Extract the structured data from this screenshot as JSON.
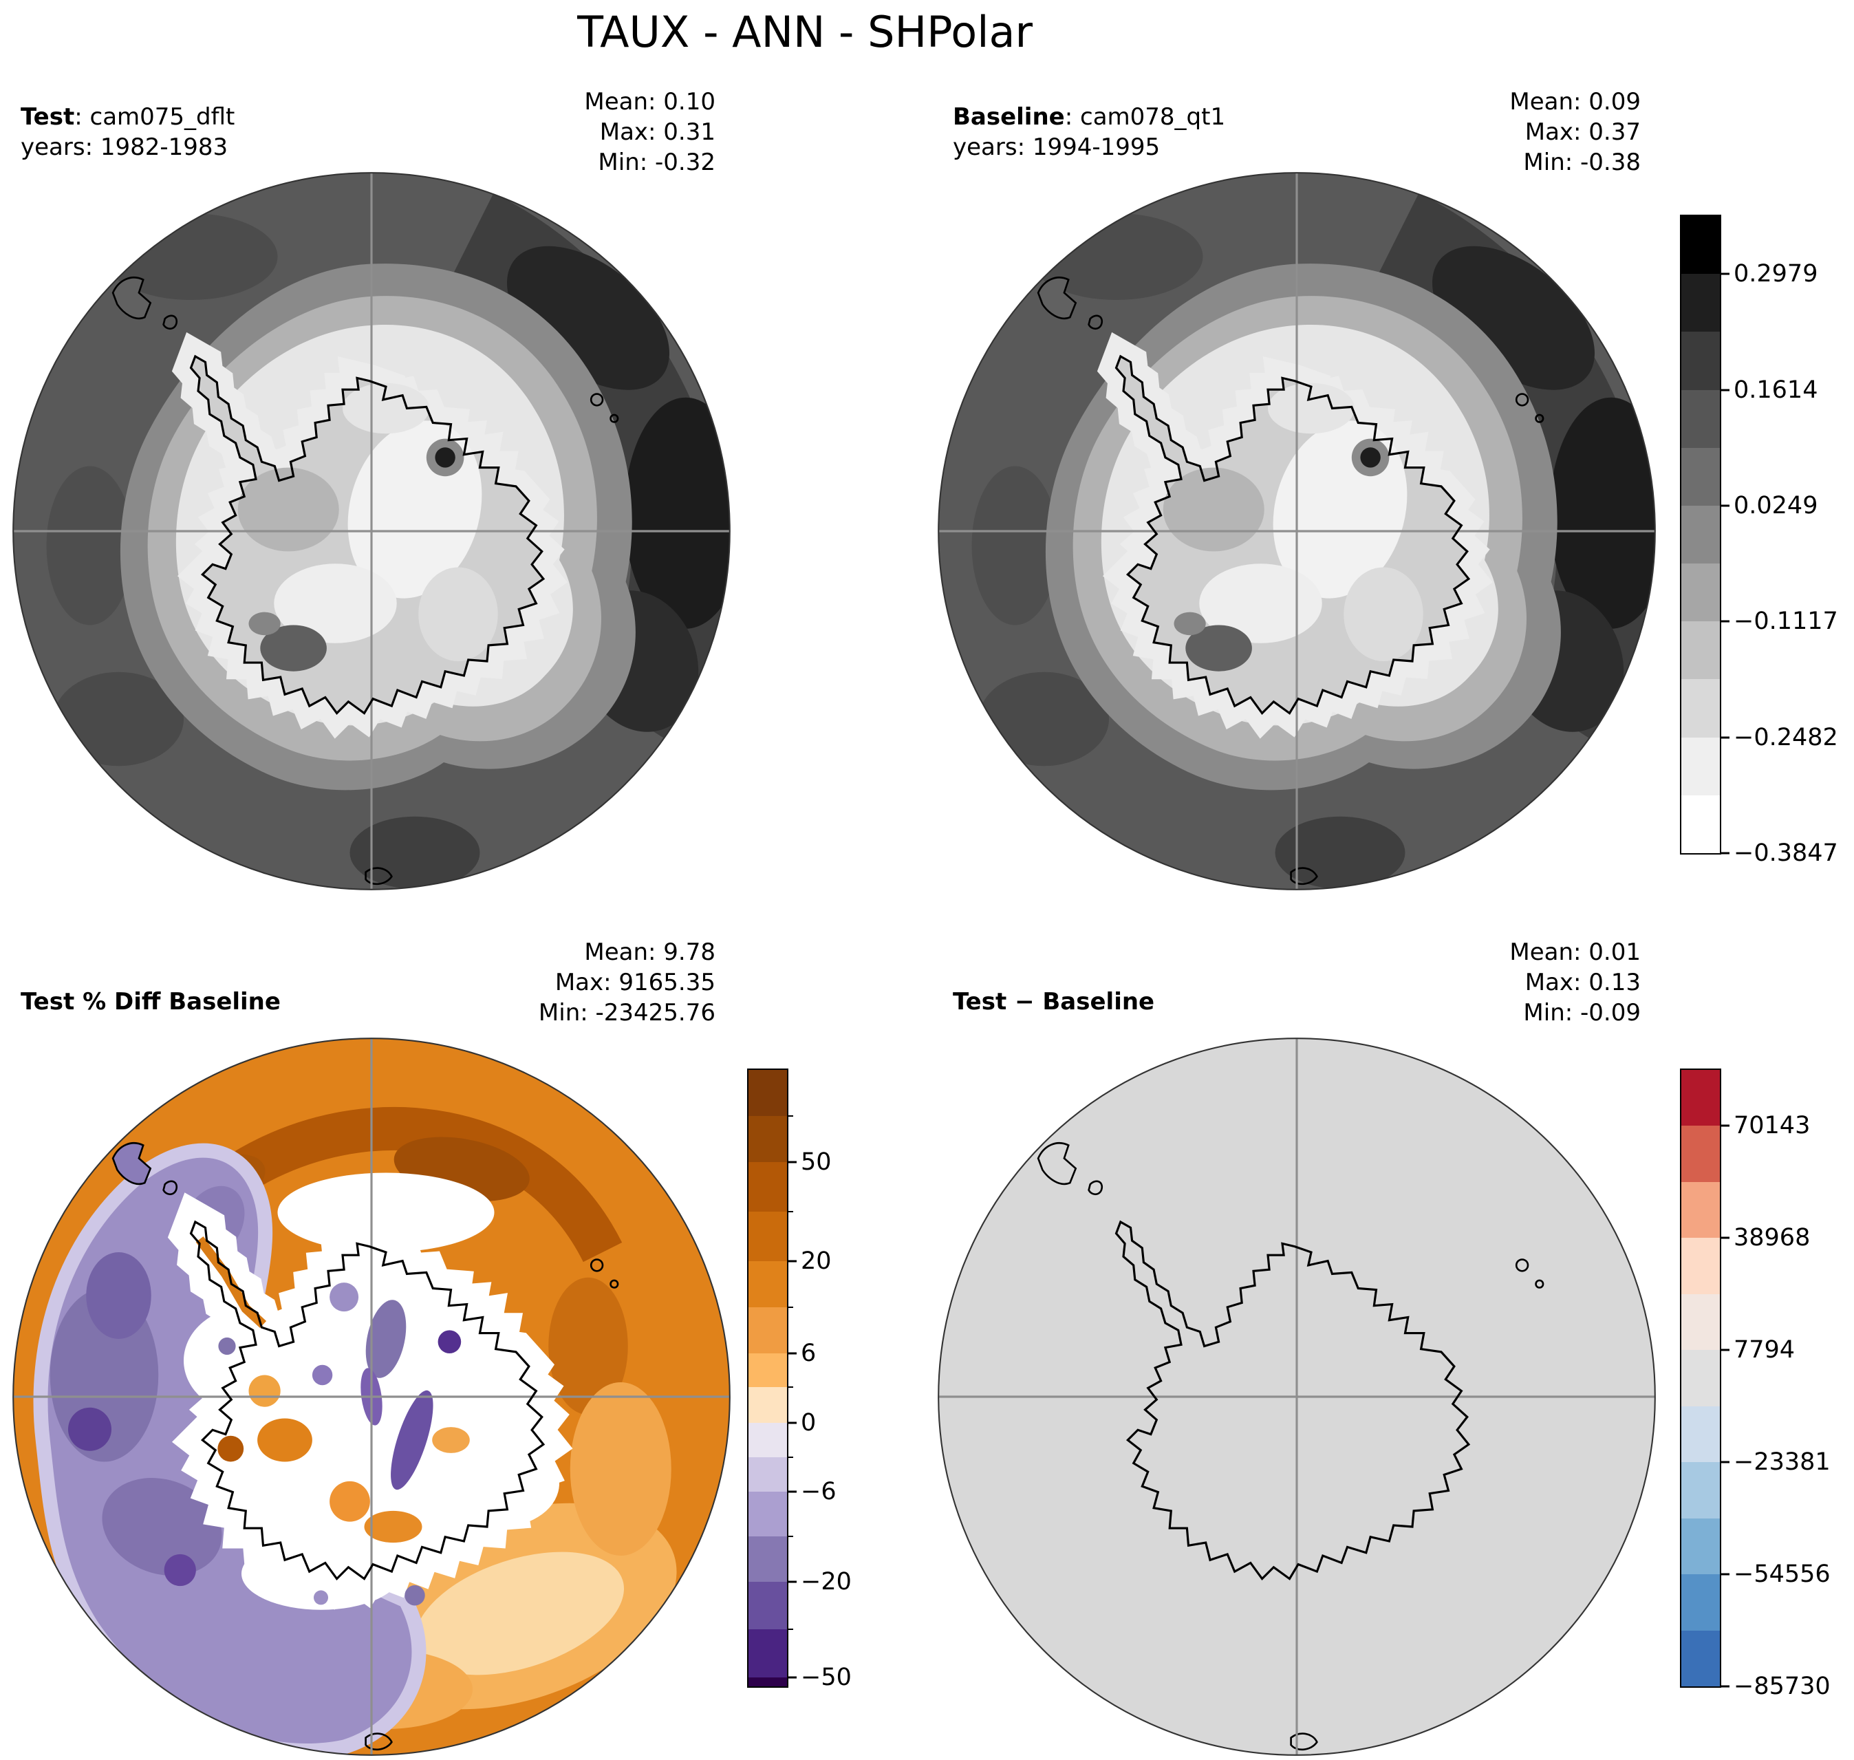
{
  "title": "TAUX - ANN - SHPolar",
  "panels": [
    {
      "id": "test",
      "title_bold": "Test",
      "title_rest": ": cam075_dflt",
      "subtitle": "years: 1982-1983",
      "stats": {
        "mean": "Mean:  0.10",
        "max": "Max:  0.31",
        "min": "Min: -0.32"
      }
    },
    {
      "id": "baseline",
      "title_bold": "Baseline",
      "title_rest": ": cam078_qt1",
      "subtitle": "years: 1994-1995",
      "stats": {
        "mean": "Mean:  0.09",
        "max": "Max:  0.37",
        "min": "Min: -0.38"
      }
    },
    {
      "id": "pct-diff",
      "title_bold": "Test % Diff Baseline",
      "title_rest": "",
      "subtitle": "",
      "stats": {
        "mean": "Mean:  9.78",
        "max": "Max: 9165.35",
        "min": "Min: -23425.76"
      }
    },
    {
      "id": "diff",
      "title_bold": "Test − Baseline",
      "title_rest": "",
      "subtitle": "",
      "stats": {
        "mean": "Mean:  0.01",
        "max": "Max:  0.13",
        "min": "Min: -0.09"
      }
    }
  ],
  "colorbars": [
    {
      "id": "grayscale",
      "minor_ticks": false,
      "ticks": [
        {
          "label": "0.2979",
          "pos": 0.0909
        },
        {
          "label": "0.1614",
          "pos": 0.2727
        },
        {
          "label": "0.0249",
          "pos": 0.4545
        },
        {
          "label": "−0.1117",
          "pos": 0.6364
        },
        {
          "label": "−0.2482",
          "pos": 0.8182
        },
        {
          "label": "−0.3847",
          "pos": 1.0
        }
      ],
      "stops": [
        {
          "from": 0.0,
          "to": 0.0909,
          "color": "#000000"
        },
        {
          "from": 0.0909,
          "to": 0.1818,
          "color": "#1f1f1f"
        },
        {
          "from": 0.1818,
          "to": 0.2727,
          "color": "#3b3b3b"
        },
        {
          "from": 0.2727,
          "to": 0.3636,
          "color": "#565656"
        },
        {
          "from": 0.3636,
          "to": 0.4545,
          "color": "#6e6e6e"
        },
        {
          "from": 0.4545,
          "to": 0.5455,
          "color": "#8a8a8a"
        },
        {
          "from": 0.5455,
          "to": 0.6364,
          "color": "#a6a6a6"
        },
        {
          "from": 0.6364,
          "to": 0.7273,
          "color": "#c2c2c2"
        },
        {
          "from": 0.7273,
          "to": 0.8182,
          "color": "#d9d9d9"
        },
        {
          "from": 0.8182,
          "to": 0.9091,
          "color": "#efefef"
        },
        {
          "from": 0.9091,
          "to": 1.0,
          "color": "#ffffff"
        }
      ]
    },
    {
      "id": "puor",
      "minor_ticks": true,
      "ticks": [
        {
          "label": "50",
          "pos": 0.15
        },
        {
          "label": "20",
          "pos": 0.31
        },
        {
          "label": "6",
          "pos": 0.46
        },
        {
          "label": "0",
          "pos": 0.572
        },
        {
          "label": "−6",
          "pos": 0.684
        },
        {
          "label": "−20",
          "pos": 0.83
        },
        {
          "label": "−50",
          "pos": 0.985
        }
      ],
      "stops": [
        {
          "from": 0.0,
          "to": 0.075,
          "color": "#7f3b08"
        },
        {
          "from": 0.075,
          "to": 0.15,
          "color": "#964906"
        },
        {
          "from": 0.15,
          "to": 0.23,
          "color": "#b35806"
        },
        {
          "from": 0.23,
          "to": 0.31,
          "color": "#ca6b0c"
        },
        {
          "from": 0.31,
          "to": 0.385,
          "color": "#e0821a"
        },
        {
          "from": 0.385,
          "to": 0.46,
          "color": "#f09c42"
        },
        {
          "from": 0.46,
          "to": 0.515,
          "color": "#fdb863"
        },
        {
          "from": 0.515,
          "to": 0.572,
          "color": "#fee3c0"
        },
        {
          "from": 0.572,
          "to": 0.628,
          "color": "#e9e4f0"
        },
        {
          "from": 0.628,
          "to": 0.684,
          "color": "#cdc5e3"
        },
        {
          "from": 0.684,
          "to": 0.757,
          "color": "#ab9fd0"
        },
        {
          "from": 0.757,
          "to": 0.83,
          "color": "#8678b2"
        },
        {
          "from": 0.83,
          "to": 0.907,
          "color": "#68509e"
        },
        {
          "from": 0.907,
          "to": 0.985,
          "color": "#4a2482"
        },
        {
          "from": 0.985,
          "to": 1.0,
          "color": "#2d004b"
        }
      ]
    },
    {
      "id": "rdbu",
      "minor_ticks": false,
      "ticks": [
        {
          "label": "70143",
          "pos": 0.0909
        },
        {
          "label": "38968",
          "pos": 0.2727
        },
        {
          "label": "7794",
          "pos": 0.4545
        },
        {
          "label": "−23381",
          "pos": 0.6364
        },
        {
          "label": "−54556",
          "pos": 0.8182
        },
        {
          "label": "−85730",
          "pos": 1.0
        }
      ],
      "stops": [
        {
          "from": 0.0,
          "to": 0.0909,
          "color": "#b2182b"
        },
        {
          "from": 0.0909,
          "to": 0.1818,
          "color": "#d6604d"
        },
        {
          "from": 0.1818,
          "to": 0.2727,
          "color": "#f4a582"
        },
        {
          "from": 0.2727,
          "to": 0.3636,
          "color": "#fddbc7"
        },
        {
          "from": 0.3636,
          "to": 0.4545,
          "color": "#f2e6e0"
        },
        {
          "from": 0.4545,
          "to": 0.5455,
          "color": "#e0e0e0"
        },
        {
          "from": 0.5455,
          "to": 0.6364,
          "color": "#cddcec"
        },
        {
          "from": 0.6364,
          "to": 0.7273,
          "color": "#a7c9e2"
        },
        {
          "from": 0.7273,
          "to": 0.8182,
          "color": "#7db0d5"
        },
        {
          "from": 0.8182,
          "to": 0.9091,
          "color": "#5591c7"
        },
        {
          "from": 0.9091,
          "to": 1.0,
          "color": "#3a70b7"
        }
      ]
    }
  ],
  "chart_data": {
    "type": "heatmap",
    "title": "TAUX - ANN - SHPolar",
    "variable": "TAUX",
    "season": "ANN",
    "region": "SHPolar",
    "projection": "south polar stereographic",
    "panels": [
      {
        "title": "Test",
        "case": "cam075_dflt",
        "years": "1982-1983",
        "stats": {
          "mean": 0.1,
          "max": 0.31,
          "min": -0.32
        },
        "colormap": "grayscale",
        "colorbar_levels": [
          0.2979,
          0.1614,
          0.0249,
          -0.1117,
          -0.2482,
          -0.3847
        ]
      },
      {
        "title": "Baseline",
        "case": "cam078_qt1",
        "years": "1994-1995",
        "stats": {
          "mean": 0.09,
          "max": 0.37,
          "min": -0.38
        },
        "colormap": "grayscale",
        "colorbar_levels": [
          0.2979,
          0.1614,
          0.0249,
          -0.1117,
          -0.2482,
          -0.3847
        ]
      },
      {
        "title": "Test % Diff Baseline",
        "stats": {
          "mean": 9.78,
          "max": 9165.35,
          "min": -23425.76
        },
        "colormap": "purple-orange diverging",
        "colorbar_levels": [
          50,
          20,
          6,
          0,
          -6,
          -20,
          -50
        ]
      },
      {
        "title": "Test − Baseline",
        "stats": {
          "mean": 0.01,
          "max": 0.13,
          "min": -0.09
        },
        "colormap": "red-blue diverging",
        "colorbar_levels": [
          70143,
          38968,
          7794,
          -23381,
          -54556,
          -85730
        ]
      }
    ]
  }
}
